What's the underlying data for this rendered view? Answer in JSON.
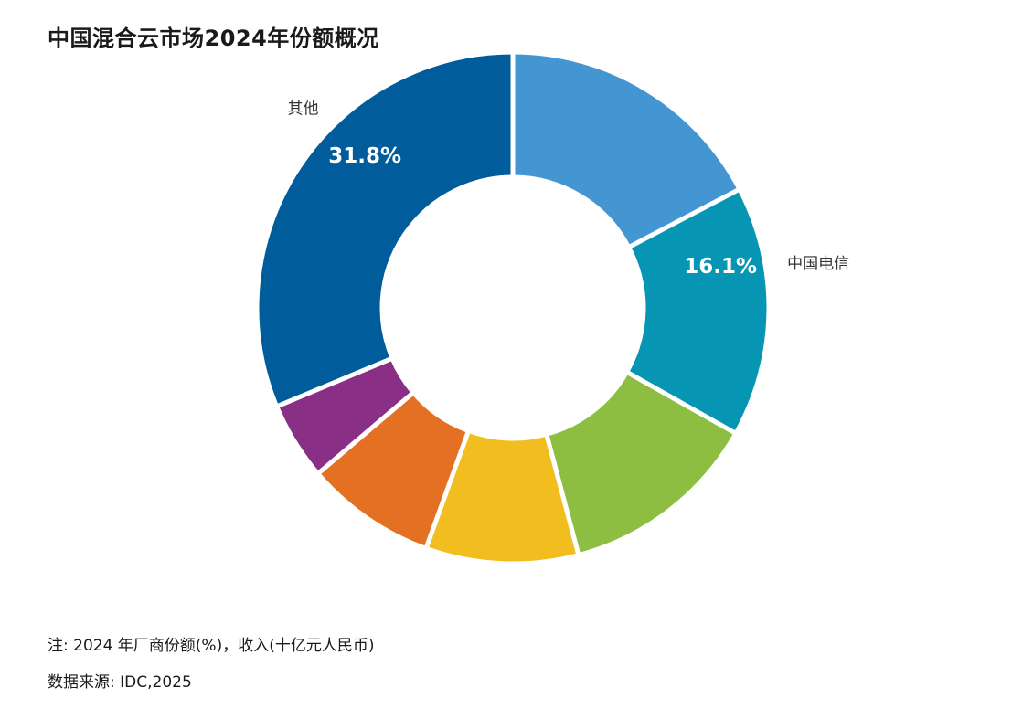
{
  "title": "中国混合云市场2024年份额概况",
  "note": "注: 2024 年厂商份额(%)，收入(十亿元人民币)",
  "source": "数据来源: IDC,2025",
  "chart_data": {
    "type": "pie",
    "donut": true,
    "start_angle_deg": 0,
    "direction": "clockwise",
    "slices": [
      {
        "value": 17.6,
        "color": "#4396d2"
      },
      {
        "label": "中国电信",
        "value": 16.1,
        "value_label": "16.1%",
        "color": "#0795b4"
      },
      {
        "value": 12.9,
        "color": "#8dbe42"
      },
      {
        "value": 9.8,
        "color": "#f2be1f"
      },
      {
        "value": 8.4,
        "color": "#e47024"
      },
      {
        "value": 5.0,
        "color": "#893086"
      },
      {
        "label": "其他",
        "value": 31.8,
        "value_label": "31.8%",
        "color": "#005c9b"
      }
    ]
  }
}
